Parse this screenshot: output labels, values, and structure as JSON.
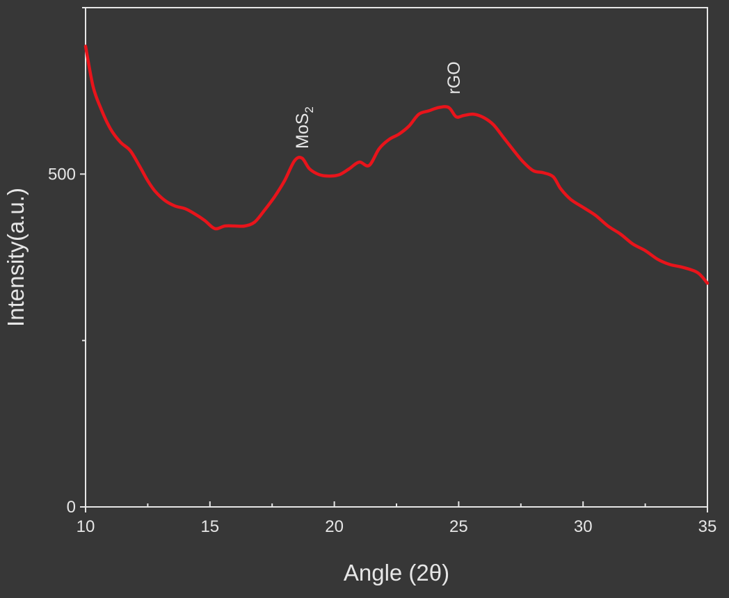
{
  "chart_data": {
    "type": "line",
    "xlabel": "Angle (2θ)",
    "ylabel": "Intensity(a.u.)",
    "xlim": [
      10,
      35
    ],
    "ylim": [
      0,
      750
    ],
    "x_ticks": [
      10,
      15,
      20,
      25,
      30,
      35
    ],
    "x_tick_labels": [
      "10",
      "15",
      "20",
      "25",
      "30",
      "35"
    ],
    "y_ticks": [
      0,
      500
    ],
    "y_tick_labels": [
      "0",
      "500"
    ],
    "grid": false,
    "legend": "none",
    "series": [
      {
        "color": "#e8141b",
        "x": [
          10.0,
          10.3,
          10.6,
          11.0,
          11.4,
          11.8,
          12.2,
          12.5,
          12.8,
          13.2,
          13.6,
          14.0,
          14.4,
          14.8,
          15.2,
          15.6,
          16.0,
          16.4,
          16.8,
          17.2,
          17.6,
          18.0,
          18.4,
          18.7,
          19.0,
          19.4,
          19.8,
          20.2,
          20.6,
          21.0,
          21.4,
          21.8,
          22.2,
          22.6,
          23.0,
          23.4,
          23.8,
          24.2,
          24.6,
          24.9,
          25.2,
          25.6,
          26.0,
          26.4,
          26.8,
          27.2,
          27.6,
          28.0,
          28.4,
          28.8,
          29.1,
          29.5,
          30.0,
          30.5,
          31.0,
          31.5,
          32.0,
          32.5,
          33.0,
          33.5,
          34.0,
          34.6,
          35.0
        ],
        "y": [
          692,
          632,
          600,
          568,
          548,
          535,
          510,
          490,
          474,
          460,
          452,
          448,
          440,
          430,
          418,
          422,
          422,
          422,
          428,
          446,
          466,
          490,
          520,
          524,
          508,
          499,
          497,
          499,
          508,
          518,
          513,
          538,
          552,
          560,
          572,
          590,
          595,
          600,
          600,
          586,
          588,
          590,
          585,
          574,
          555,
          536,
          518,
          505,
          502,
          496,
          478,
          462,
          450,
          438,
          422,
          410,
          395,
          385,
          372,
          364,
          360,
          352,
          336
        ]
      }
    ],
    "annotations": [
      {
        "text": "MoS",
        "subscript": "2",
        "x": 18.7,
        "y": 538,
        "rotation": -90
      },
      {
        "text": "rGO",
        "x": 24.8,
        "y": 620,
        "rotation": -90
      }
    ]
  }
}
